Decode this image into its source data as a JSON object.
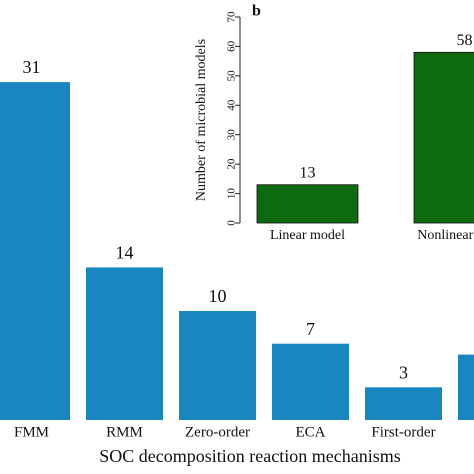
{
  "chart_data": [
    {
      "type": "bar",
      "x_label": "SOC decomposition reaction mechanisms",
      "categories": [
        "FMM",
        "RMM",
        "Zero-order",
        "ECA",
        "First-order",
        null
      ],
      "values": [
        31,
        14,
        10,
        7,
        3,
        6
      ],
      "color": "#1a86c0",
      "ylim": [
        0,
        35
      ]
    },
    {
      "type": "bar",
      "panel_label": "b",
      "y_label": "Number of microbial models",
      "categories": [
        "Linear model",
        "Nonlinear model"
      ],
      "values": [
        13,
        58
      ],
      "color": "#0e6a10",
      "ylim": [
        0,
        70
      ],
      "yticks": [
        0,
        10,
        20,
        30,
        40,
        50,
        60,
        70
      ]
    }
  ]
}
